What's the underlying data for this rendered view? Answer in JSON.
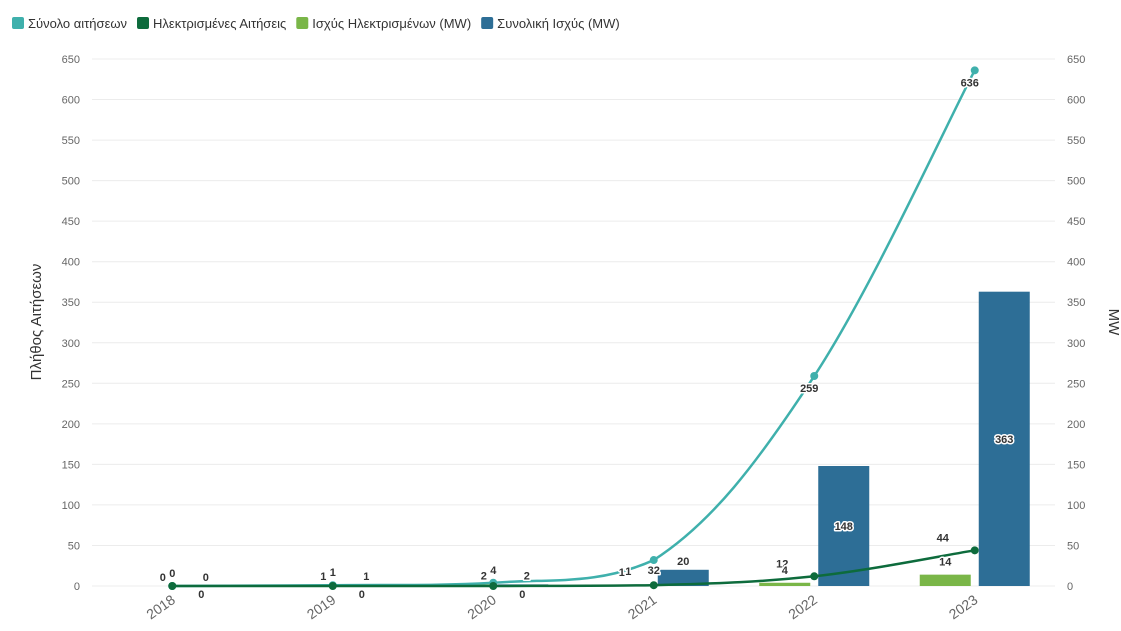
{
  "chart_data": {
    "type": "bar",
    "categories": [
      "2018",
      "2019",
      "2020",
      "2021",
      "2022",
      "2023"
    ],
    "legend_position": "top-left",
    "grid": true,
    "y_left": {
      "label": "Πλήθος Αιτήσεων",
      "range": [
        0,
        650
      ],
      "ticks": [
        "0",
        "50",
        "100",
        "150",
        "200",
        "250",
        "300",
        "350",
        "400",
        "450",
        "500",
        "550",
        "600",
        "650"
      ]
    },
    "y_right": {
      "label": "MW",
      "range": [
        0,
        650
      ],
      "ticks": [
        "0",
        "50",
        "100",
        "150",
        "200",
        "250",
        "300",
        "350",
        "400",
        "450",
        "500",
        "550",
        "600",
        "650"
      ]
    },
    "series": [
      {
        "name": "Σύνολο αιτήσεων",
        "type": "line",
        "axis": "left",
        "color": "#3fb0ac",
        "values": [
          0,
          1,
          4,
          32,
          259,
          636
        ],
        "labels": [
          "0",
          "1",
          "4",
          "32",
          "259",
          "636"
        ]
      },
      {
        "name": "Ηλεκτρισμένες Αιτήσεις",
        "type": "line",
        "axis": "left",
        "color": "#0d6b3c",
        "values": [
          0,
          0,
          0,
          1,
          12,
          44
        ],
        "labels": [
          "0",
          "0",
          "0",
          "1",
          "12",
          "44"
        ]
      },
      {
        "name": "Ισχύς Ηλεκτρισμένων (MW)",
        "type": "bar",
        "axis": "right",
        "color": "#7ab648",
        "values": [
          0,
          1,
          2,
          1,
          4,
          14
        ],
        "labels": [
          "0",
          "1",
          "2",
          "1",
          "4",
          "14"
        ]
      },
      {
        "name": "Συνολική Ισχύς (MW)",
        "type": "bar",
        "axis": "right",
        "color": "#2d6e96",
        "values": [
          0,
          1,
          2,
          20,
          148,
          363
        ],
        "labels": [
          "0",
          "1",
          "2",
          "20",
          "148",
          "363"
        ]
      }
    ]
  }
}
